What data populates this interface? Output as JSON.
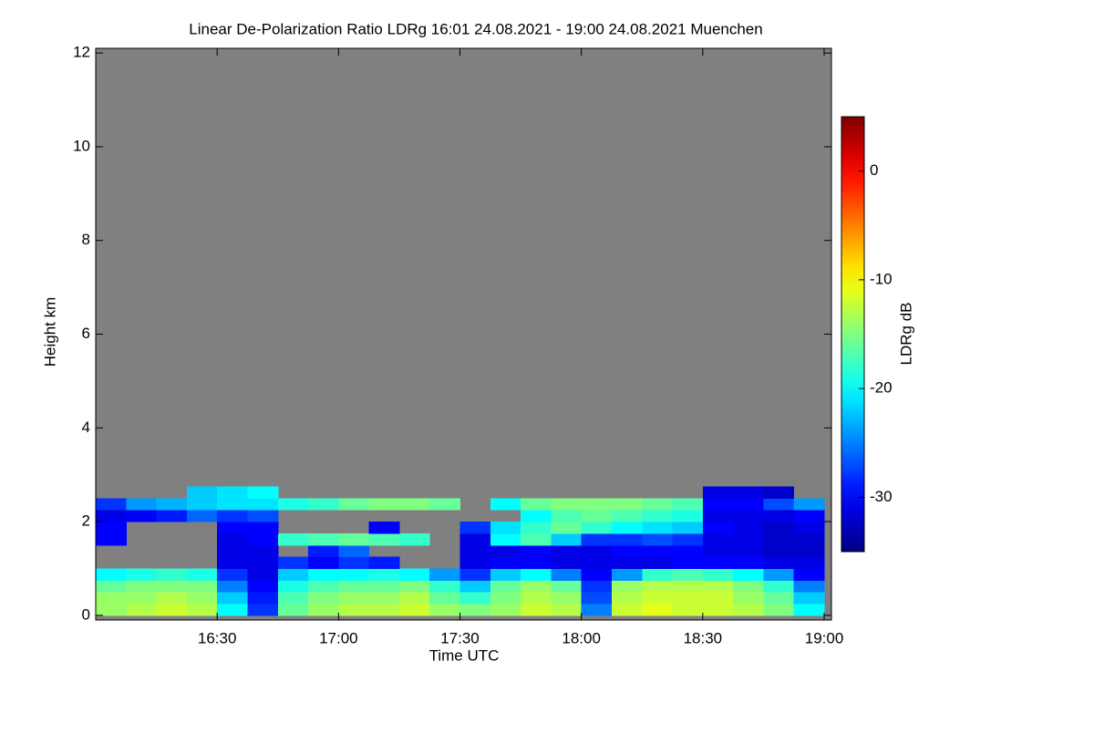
{
  "chart_data": {
    "type": "heatmap",
    "title": "Linear De-Polarization Ratio LDRg   16:01 24.08.2021 - 19:00 24.08.2021 Muenchen",
    "xlabel": "Time UTC",
    "ylabel": "Height km",
    "zlabel": "LDRg dB",
    "colormap": "jet",
    "missing_color": "#808080",
    "xlim": [
      16.0,
      19.03
    ],
    "xticks": [
      {
        "value": 16.5,
        "label": "16:30"
      },
      {
        "value": 17.0,
        "label": "17:00"
      },
      {
        "value": 17.5,
        "label": "17:30"
      },
      {
        "value": 18.0,
        "label": "18:00"
      },
      {
        "value": 18.5,
        "label": "18:30"
      },
      {
        "value": 19.0,
        "label": "19:00"
      }
    ],
    "ylim": [
      -0.1,
      12.1
    ],
    "yticks": [
      0,
      2,
      4,
      6,
      8,
      10,
      12
    ],
    "zlim": [
      -35,
      5
    ],
    "zticks": [
      -30,
      -20,
      -10,
      0
    ],
    "xbins": [
      16.0,
      16.125,
      16.25,
      16.375,
      16.5,
      16.625,
      16.75,
      16.875,
      17.0,
      17.125,
      17.25,
      17.375,
      17.5,
      17.625,
      17.75,
      17.875,
      18.0,
      18.125,
      18.25,
      18.375,
      18.5,
      18.625,
      18.75,
      18.875,
      19.0
    ],
    "ybins": [
      0,
      0.25,
      0.5,
      0.75,
      1.0,
      1.25,
      1.5,
      1.75,
      2.0,
      2.25,
      2.5,
      2.75
    ],
    "z": [
      [
        -14,
        -13,
        -12,
        -13,
        -20,
        -28,
        -16,
        -14,
        -13,
        -13,
        -12,
        -14,
        -15,
        -14,
        -12,
        -13,
        -25,
        -12,
        -11,
        -12,
        -12,
        -13,
        -15,
        -20
      ],
      [
        -14,
        -14,
        -13,
        -14,
        -22,
        -29,
        -17,
        -15,
        -14,
        -14,
        -13,
        -16,
        -18,
        -15,
        -13,
        -14,
        -27,
        -13,
        -12,
        -12,
        -12,
        -14,
        -16,
        -22
      ],
      [
        -16,
        -15,
        -15,
        -15,
        -25,
        -30,
        -19,
        -17,
        -16,
        -16,
        -15,
        -18,
        -22,
        -16,
        -14,
        -16,
        -28,
        -14,
        -13,
        -13,
        -13,
        -15,
        -18,
        -25
      ],
      [
        -20,
        -19,
        -18,
        -19,
        -28,
        -31,
        -22,
        -20,
        -20,
        -19,
        -20,
        -24,
        -28,
        -22,
        -20,
        -25,
        -30,
        -24,
        -18,
        -17,
        -18,
        -20,
        -24,
        -30
      ],
      [
        null,
        null,
        null,
        null,
        -31,
        -31,
        -28,
        -30,
        -28,
        -29,
        null,
        null,
        -31,
        -30,
        -30,
        -31,
        -31,
        -31,
        -31,
        -30,
        -30,
        -30,
        -31,
        -31
      ],
      [
        null,
        null,
        null,
        null,
        -31,
        -31,
        null,
        -29,
        -26,
        null,
        null,
        null,
        -31,
        -31,
        -30,
        -31,
        -31,
        -30,
        -30,
        -30,
        -31,
        -31,
        -32,
        -32
      ],
      [
        -30,
        null,
        null,
        null,
        -31,
        -30,
        -18,
        -17,
        -16,
        -17,
        -18,
        null,
        -31,
        -20,
        -17,
        -22,
        -28,
        -28,
        -27,
        -28,
        -31,
        -31,
        -32,
        -32
      ],
      [
        -30,
        null,
        null,
        null,
        -30,
        -30,
        null,
        null,
        null,
        -30,
        null,
        null,
        -28,
        -21,
        -18,
        -16,
        -18,
        -20,
        -21,
        -22,
        -30,
        -31,
        -32,
        -31
      ],
      [
        -31,
        -30,
        -29,
        -26,
        -28,
        -27,
        null,
        null,
        null,
        null,
        null,
        null,
        null,
        null,
        -20,
        -17,
        -16,
        -17,
        -18,
        -19,
        -31,
        -31,
        -31,
        -30
      ],
      [
        -28,
        -24,
        -23,
        -22,
        -21,
        -21,
        -19,
        -18,
        -16,
        -15,
        -15,
        -16,
        null,
        -20,
        -16,
        -15,
        -15,
        -15,
        -16,
        -17,
        -30,
        -30,
        -27,
        -24
      ],
      [
        null,
        null,
        null,
        -22,
        -21,
        -20,
        null,
        null,
        null,
        null,
        null,
        null,
        null,
        null,
        null,
        null,
        null,
        null,
        null,
        null,
        -31,
        -31,
        -32,
        null
      ]
    ]
  }
}
